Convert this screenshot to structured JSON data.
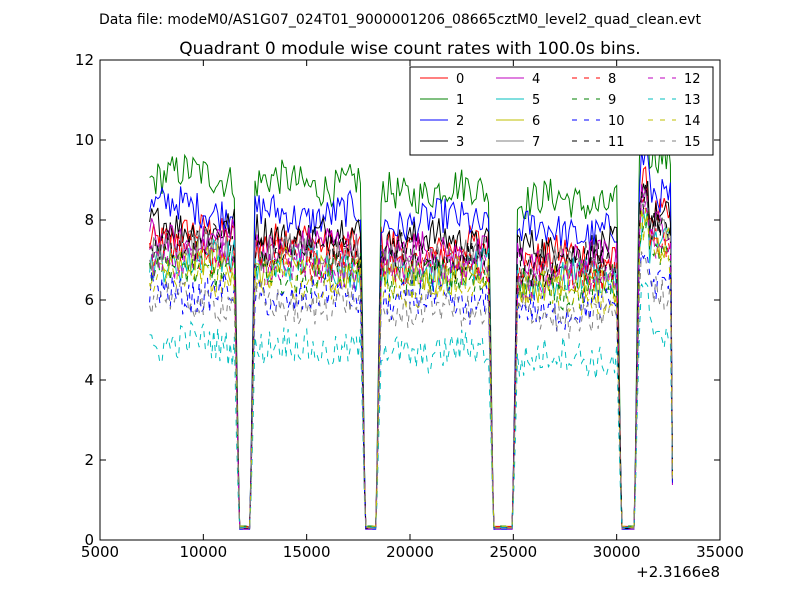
{
  "figure": {
    "suptitle": "Data file: modeM0/AS1G07_024T01_9000001206_08665cztM0_level2_quad_clean.evt"
  },
  "chart_data": {
    "type": "line",
    "title": "Quadrant 0 module wise count rates with 100.0s bins.",
    "xlabel": "",
    "ylabel": "",
    "x_offset_label": "+2.3166e8",
    "xlim": [
      5000,
      35000
    ],
    "ylim": [
      0,
      12
    ],
    "xticks": [
      5000,
      10000,
      15000,
      20000,
      25000,
      30000,
      35000
    ],
    "yticks": [
      0,
      2,
      4,
      6,
      8,
      10,
      12
    ],
    "grid": false,
    "legend_position": "top-right",
    "legend_columns": 4,
    "segments": [
      [
        7400,
        11700
      ],
      [
        12300,
        17800
      ],
      [
        18400,
        24000
      ],
      [
        25000,
        30200
      ],
      [
        30900,
        32700
      ]
    ],
    "gaps": [
      [
        11700,
        12300
      ],
      [
        17800,
        18400
      ],
      [
        24000,
        25000
      ],
      [
        30200,
        30900
      ]
    ],
    "end_dip_value": 1.2,
    "series": [
      {
        "name": "0",
        "color": "#ff0000",
        "dash": "solid",
        "base": 7.6
      },
      {
        "name": "1",
        "color": "#008000",
        "dash": "solid",
        "base": 9.1
      },
      {
        "name": "2",
        "color": "#0000ff",
        "dash": "solid",
        "base": 8.3
      },
      {
        "name": "3",
        "color": "#000000",
        "dash": "solid",
        "base": 7.8
      },
      {
        "name": "4",
        "color": "#bf00bf",
        "dash": "solid",
        "base": 7.5
      },
      {
        "name": "5",
        "color": "#00bfbf",
        "dash": "solid",
        "base": 7.0
      },
      {
        "name": "6",
        "color": "#bfbf00",
        "dash": "solid",
        "base": 6.9
      },
      {
        "name": "7",
        "color": "#808080",
        "dash": "solid",
        "base": 7.3
      },
      {
        "name": "8",
        "color": "#ff0000",
        "dash": "dashed",
        "base": 7.2
      },
      {
        "name": "9",
        "color": "#008000",
        "dash": "dashed",
        "base": 6.8
      },
      {
        "name": "10",
        "color": "#0000ff",
        "dash": "dashed",
        "base": 6.2
      },
      {
        "name": "11",
        "color": "#000000",
        "dash": "dashed",
        "base": 7.4
      },
      {
        "name": "12",
        "color": "#bf00bf",
        "dash": "dashed",
        "base": 7.0
      },
      {
        "name": "13",
        "color": "#00bfbf",
        "dash": "dashed",
        "base": 4.9
      },
      {
        "name": "14",
        "color": "#bfbf00",
        "dash": "dashed",
        "base": 6.6
      },
      {
        "name": "15",
        "color": "#808080",
        "dash": "dashed",
        "base": 6.0
      }
    ]
  }
}
